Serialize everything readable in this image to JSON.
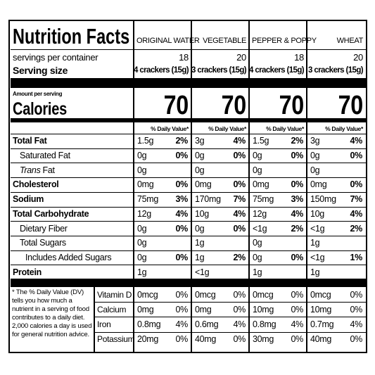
{
  "title": "Nutrition Facts",
  "servings_label": "servings per container",
  "serving_size_label": "Serving size",
  "amount_per_serving": "Amount per serving",
  "calories_label": "Calories",
  "daily_value_header": "% Daily Value*",
  "products": [
    {
      "name": "ORIGINAL WATER",
      "servings": "18",
      "serving_size": "4 crackers (15g)",
      "calories": "70"
    },
    {
      "name": "VEGETABLE",
      "servings": "20",
      "serving_size": "3 crackers (15g)",
      "calories": "70"
    },
    {
      "name": "PEPPER & POPPY",
      "servings": "18",
      "serving_size": "4 crackers (15g)",
      "calories": "70"
    },
    {
      "name": "WHEAT",
      "servings": "20",
      "serving_size": "3 crackers (15g)",
      "calories": "70"
    }
  ],
  "nutrients": [
    {
      "label": "Total Fat",
      "bold": true,
      "indent": 0,
      "values": [
        {
          "amount": "1.5g",
          "dv": "2%"
        },
        {
          "amount": "3g",
          "dv": "4%"
        },
        {
          "amount": "1.5g",
          "dv": "2%"
        },
        {
          "amount": "3g",
          "dv": "4%"
        }
      ]
    },
    {
      "label": "Saturated Fat",
      "bold": false,
      "indent": 1,
      "values": [
        {
          "amount": "0g",
          "dv": "0%"
        },
        {
          "amount": "0g",
          "dv": "0%"
        },
        {
          "amount": "0g",
          "dv": "0%"
        },
        {
          "amount": "0g",
          "dv": "0%"
        }
      ]
    },
    {
      "label_italic": "Trans",
      "label": "Fat",
      "bold": false,
      "indent": 1,
      "values": [
        {
          "amount": "0g"
        },
        {
          "amount": "0g"
        },
        {
          "amount": "0g"
        },
        {
          "amount": "0g"
        }
      ]
    },
    {
      "label": "Cholesterol",
      "bold": true,
      "indent": 0,
      "values": [
        {
          "amount": "0mg",
          "dv": "0%"
        },
        {
          "amount": "0mg",
          "dv": "0%"
        },
        {
          "amount": "0mg",
          "dv": "0%"
        },
        {
          "amount": "0mg",
          "dv": "0%"
        }
      ]
    },
    {
      "label": "Sodium",
      "bold": true,
      "indent": 0,
      "values": [
        {
          "amount": "75mg",
          "dv": "3%"
        },
        {
          "amount": "170mg",
          "dv": "7%"
        },
        {
          "amount": "75mg",
          "dv": "3%"
        },
        {
          "amount": "150mg",
          "dv": "7%"
        }
      ]
    },
    {
      "label": "Total Carbohydrate",
      "bold": true,
      "indent": 0,
      "values": [
        {
          "amount": "12g",
          "dv": "4%"
        },
        {
          "amount": "10g",
          "dv": "4%"
        },
        {
          "amount": "12g",
          "dv": "4%"
        },
        {
          "amount": "10g",
          "dv": "4%"
        }
      ]
    },
    {
      "label": "Dietary Fiber",
      "bold": false,
      "indent": 1,
      "values": [
        {
          "amount": "0g",
          "dv": "0%"
        },
        {
          "amount": "0g",
          "dv": "0%"
        },
        {
          "amount": "<1g",
          "dv": "2%"
        },
        {
          "amount": "<1g",
          "dv": "2%"
        }
      ]
    },
    {
      "label": "Total Sugars",
      "bold": false,
      "indent": 1,
      "values": [
        {
          "amount": "0g"
        },
        {
          "amount": "1g"
        },
        {
          "amount": "0g"
        },
        {
          "amount": "1g"
        }
      ]
    },
    {
      "label": "Includes Added Sugars",
      "bold": false,
      "indent": 2,
      "values": [
        {
          "amount": "0g",
          "dv": "0%"
        },
        {
          "amount": "1g",
          "dv": "2%"
        },
        {
          "amount": "0g",
          "dv": "0%"
        },
        {
          "amount": "<1g",
          "dv": "1%"
        }
      ]
    },
    {
      "label": "Protein",
      "bold": true,
      "indent": 0,
      "values": [
        {
          "amount": "1g"
        },
        {
          "amount": "<1g"
        },
        {
          "amount": "1g"
        },
        {
          "amount": "1g"
        }
      ]
    }
  ],
  "vitamins": [
    {
      "label": "Vitamin D",
      "values": [
        {
          "amount": "0mcg",
          "dv": "0%"
        },
        {
          "amount": "0mcg",
          "dv": "0%"
        },
        {
          "amount": "0mcg",
          "dv": "0%"
        },
        {
          "amount": "0mcg",
          "dv": "0%"
        }
      ]
    },
    {
      "label": "Calcium",
      "values": [
        {
          "amount": "0mg",
          "dv": "0%"
        },
        {
          "amount": "0mg",
          "dv": "0%"
        },
        {
          "amount": "10mg",
          "dv": "0%"
        },
        {
          "amount": "10mg",
          "dv": "0%"
        }
      ]
    },
    {
      "label": "Iron",
      "values": [
        {
          "amount": "0.8mg",
          "dv": "4%"
        },
        {
          "amount": "0.6mg",
          "dv": "4%"
        },
        {
          "amount": "0.8mg",
          "dv": "4%"
        },
        {
          "amount": "0.7mg",
          "dv": "4%"
        }
      ]
    },
    {
      "label": "Potassium",
      "values": [
        {
          "amount": "20mg",
          "dv": "0%"
        },
        {
          "amount": "40mg",
          "dv": "0%"
        },
        {
          "amount": "30mg",
          "dv": "0%"
        },
        {
          "amount": "40mg",
          "dv": "0%"
        }
      ]
    }
  ],
  "footnote": "* The % Daily Value (DV) tells you how much a nutrient in a serving of food contributes to a daily diet. 2,000 calories a day is used for general nutrition advice."
}
